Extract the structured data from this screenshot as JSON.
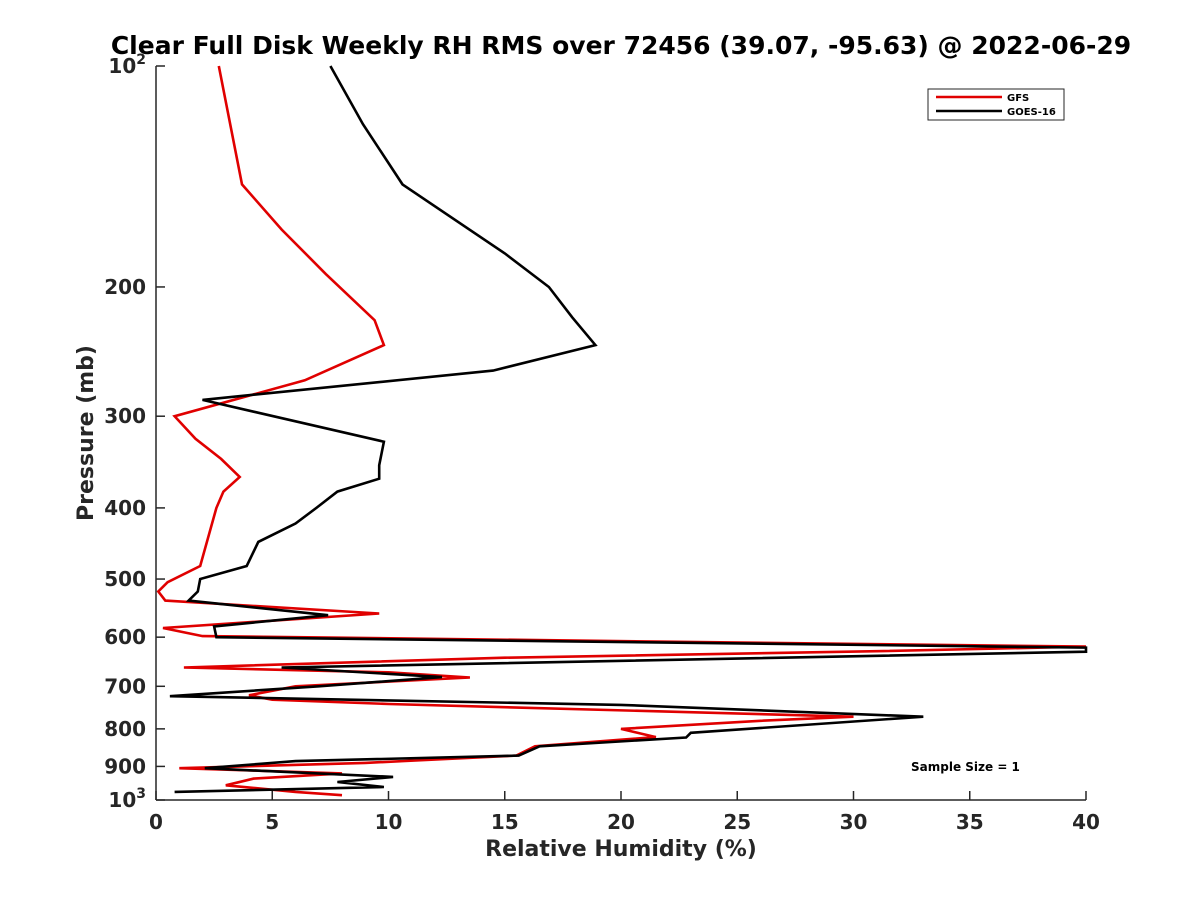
{
  "chart_data": {
    "type": "line",
    "title": "Clear Full Disk Weekly RH RMS over 72456 (39.07, -95.63) @ 2022-06-29",
    "xlabel": "Relative Humidity (%)",
    "ylabel": "Pressure (mb)",
    "xlim": [
      0,
      40
    ],
    "ylim": [
      100,
      1000
    ],
    "yscale": "log",
    "y_reversed": true,
    "x_ticks": [
      "0",
      "5",
      "10",
      "15",
      "20",
      "25",
      "30",
      "35",
      "40"
    ],
    "y_ticks": [
      {
        "value": 100,
        "base": "10",
        "exp": "2"
      },
      {
        "value": 200,
        "label": "200"
      },
      {
        "value": 300,
        "label": "300"
      },
      {
        "value": 400,
        "label": "400"
      },
      {
        "value": 500,
        "label": "500"
      },
      {
        "value": 600,
        "label": "600"
      },
      {
        "value": 700,
        "label": "700"
      },
      {
        "value": 800,
        "label": "800"
      },
      {
        "value": 900,
        "label": "900"
      },
      {
        "value": 1000,
        "base": "10",
        "exp": "3"
      }
    ],
    "legend_position": "top-right",
    "annotation": "Sample Size = 1",
    "series": [
      {
        "name": "GFS",
        "color": "#e00000",
        "points": [
          [
            2.7,
            100
          ],
          [
            3.7,
            145
          ],
          [
            5.4,
            167
          ],
          [
            7.3,
            192
          ],
          [
            9.4,
            222
          ],
          [
            9.8,
            240
          ],
          [
            6.4,
            268
          ],
          [
            0.8,
            300
          ],
          [
            1.7,
            322
          ],
          [
            2.8,
            343
          ],
          [
            3.6,
            363
          ],
          [
            2.9,
            380
          ],
          [
            2.6,
            400
          ],
          [
            1.9,
            480
          ],
          [
            0.5,
            505
          ],
          [
            0.1,
            520
          ],
          [
            0.4,
            535
          ],
          [
            9.6,
            557
          ],
          [
            0.3,
            583
          ],
          [
            2.0,
            598
          ],
          [
            40.0,
            618
          ],
          [
            31.0,
            627
          ],
          [
            15.0,
            640
          ],
          [
            1.2,
            660
          ],
          [
            10.0,
            670
          ],
          [
            13.5,
            681
          ],
          [
            6.0,
            700
          ],
          [
            4.0,
            720
          ],
          [
            5.0,
            730
          ],
          [
            10.0,
            740
          ],
          [
            30.0,
            770
          ],
          [
            26.0,
            780
          ],
          [
            20.0,
            800
          ],
          [
            21.5,
            821
          ],
          [
            16.3,
            845
          ],
          [
            15.5,
            870
          ],
          [
            9.0,
            890
          ],
          [
            1.0,
            905
          ],
          [
            8.0,
            920
          ],
          [
            4.2,
            935
          ],
          [
            3.0,
            955
          ],
          [
            6.0,
            975
          ],
          [
            8.0,
            985
          ]
        ]
      },
      {
        "name": "GOES-16",
        "color": "#000000",
        "points": [
          [
            7.5,
            100
          ],
          [
            8.9,
            120
          ],
          [
            10.6,
            145
          ],
          [
            15.0,
            180
          ],
          [
            16.9,
            200
          ],
          [
            17.9,
            220
          ],
          [
            18.9,
            240
          ],
          [
            14.5,
            260
          ],
          [
            2.0,
            285
          ],
          [
            9.8,
            325
          ],
          [
            9.6,
            350
          ],
          [
            9.6,
            365
          ],
          [
            7.8,
            380
          ],
          [
            6.9,
            400
          ],
          [
            6.0,
            420
          ],
          [
            4.4,
            445
          ],
          [
            3.9,
            480
          ],
          [
            1.9,
            500
          ],
          [
            1.8,
            520
          ],
          [
            1.4,
            535
          ],
          [
            7.4,
            560
          ],
          [
            2.5,
            580
          ],
          [
            2.6,
            600
          ],
          [
            40.0,
            620
          ],
          [
            40.0,
            628
          ],
          [
            5.4,
            660
          ],
          [
            12.3,
            680
          ],
          [
            7.0,
            700
          ],
          [
            0.6,
            722
          ],
          [
            20.0,
            742
          ],
          [
            33.0,
            770
          ],
          [
            23.0,
            810
          ],
          [
            22.8,
            822
          ],
          [
            16.5,
            845
          ],
          [
            15.6,
            870
          ],
          [
            6.0,
            885
          ],
          [
            2.1,
            905
          ],
          [
            10.2,
            930
          ],
          [
            7.8,
            945
          ],
          [
            9.8,
            960
          ],
          [
            0.8,
            975
          ]
        ]
      }
    ]
  }
}
